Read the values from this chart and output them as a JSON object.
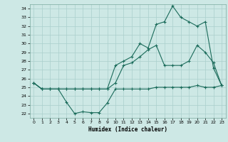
{
  "xlabel": "Humidex (Indice chaleur)",
  "background_color": "#cde8e5",
  "grid_color": "#aacfcc",
  "line_color": "#1a6b5a",
  "xlim": [
    -0.5,
    23.5
  ],
  "ylim": [
    21.5,
    34.5
  ],
  "xticks": [
    0,
    1,
    2,
    3,
    4,
    5,
    6,
    7,
    8,
    9,
    10,
    11,
    12,
    13,
    14,
    15,
    16,
    17,
    18,
    19,
    20,
    21,
    22,
    23
  ],
  "yticks": [
    22,
    23,
    24,
    25,
    26,
    27,
    28,
    29,
    30,
    31,
    32,
    33,
    34
  ],
  "line1_x": [
    0,
    1,
    2,
    3,
    4,
    5,
    6,
    7,
    8,
    9,
    10,
    11,
    12,
    13,
    14,
    15,
    16,
    17,
    18,
    19,
    20,
    21,
    22,
    23
  ],
  "line1_y": [
    25.5,
    24.8,
    24.8,
    24.8,
    23.3,
    22.0,
    22.2,
    22.1,
    22.1,
    23.2,
    24.8,
    24.8,
    24.8,
    24.8,
    24.8,
    25.0,
    25.0,
    25.0,
    25.0,
    25.0,
    25.2,
    25.0,
    25.0,
    25.2
  ],
  "line2_x": [
    0,
    1,
    2,
    3,
    4,
    5,
    6,
    7,
    8,
    9,
    10,
    11,
    12,
    13,
    14,
    15,
    16,
    17,
    18,
    19,
    20,
    21,
    22,
    23
  ],
  "line2_y": [
    25.5,
    24.8,
    24.8,
    24.8,
    24.8,
    24.8,
    24.8,
    24.8,
    24.8,
    24.8,
    25.5,
    27.5,
    27.8,
    28.5,
    29.3,
    29.8,
    27.5,
    27.5,
    27.5,
    28.0,
    29.8,
    29.0,
    27.8,
    25.2
  ],
  "line3_x": [
    0,
    1,
    2,
    3,
    4,
    5,
    6,
    7,
    8,
    9,
    10,
    11,
    12,
    13,
    14,
    15,
    16,
    17,
    18,
    19,
    20,
    21,
    22,
    23
  ],
  "line3_y": [
    25.5,
    24.8,
    24.8,
    24.8,
    24.8,
    24.8,
    24.8,
    24.8,
    24.8,
    24.8,
    27.5,
    28.0,
    28.5,
    30.0,
    29.5,
    32.2,
    32.5,
    34.3,
    33.0,
    32.5,
    32.0,
    32.5,
    27.2,
    25.2
  ]
}
